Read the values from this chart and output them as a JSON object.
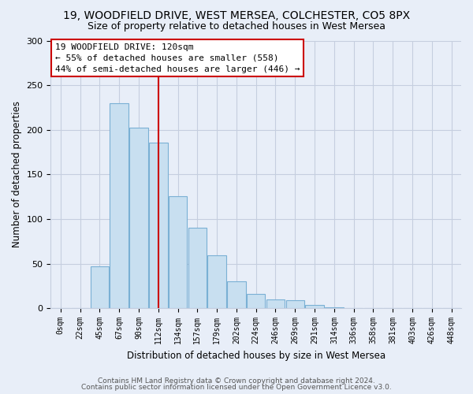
{
  "title": "19, WOODFIELD DRIVE, WEST MERSEA, COLCHESTER, CO5 8PX",
  "subtitle": "Size of property relative to detached houses in West Mersea",
  "xlabel": "Distribution of detached houses by size in West Mersea",
  "ylabel": "Number of detached properties",
  "bar_labels": [
    "0sqm",
    "22sqm",
    "45sqm",
    "67sqm",
    "90sqm",
    "112sqm",
    "134sqm",
    "157sqm",
    "179sqm",
    "202sqm",
    "224sqm",
    "246sqm",
    "269sqm",
    "291sqm",
    "314sqm",
    "336sqm",
    "358sqm",
    "381sqm",
    "403sqm",
    "426sqm",
    "448sqm"
  ],
  "bar_values": [
    0,
    0,
    47,
    230,
    202,
    186,
    126,
    90,
    59,
    30,
    16,
    10,
    9,
    4,
    1,
    0,
    0,
    0,
    0,
    0,
    0
  ],
  "bar_color": "#c8dff0",
  "bar_edge_color": "#7ab0d4",
  "ylim": [
    0,
    300
  ],
  "yticks": [
    0,
    50,
    100,
    150,
    200,
    250,
    300
  ],
  "property_line_x": 5.0,
  "property_line_color": "#cc0000",
  "annotation_title": "19 WOODFIELD DRIVE: 120sqm",
  "annotation_line1": "← 55% of detached houses are smaller (558)",
  "annotation_line2": "44% of semi-detached houses are larger (446) →",
  "footnote1": "Contains HM Land Registry data © Crown copyright and database right 2024.",
  "footnote2": "Contains public sector information licensed under the Open Government Licence v3.0.",
  "fig_bg_color": "#e8eef8",
  "plot_bg_color": "#e8eef8",
  "grid_color": "#c5cedf"
}
